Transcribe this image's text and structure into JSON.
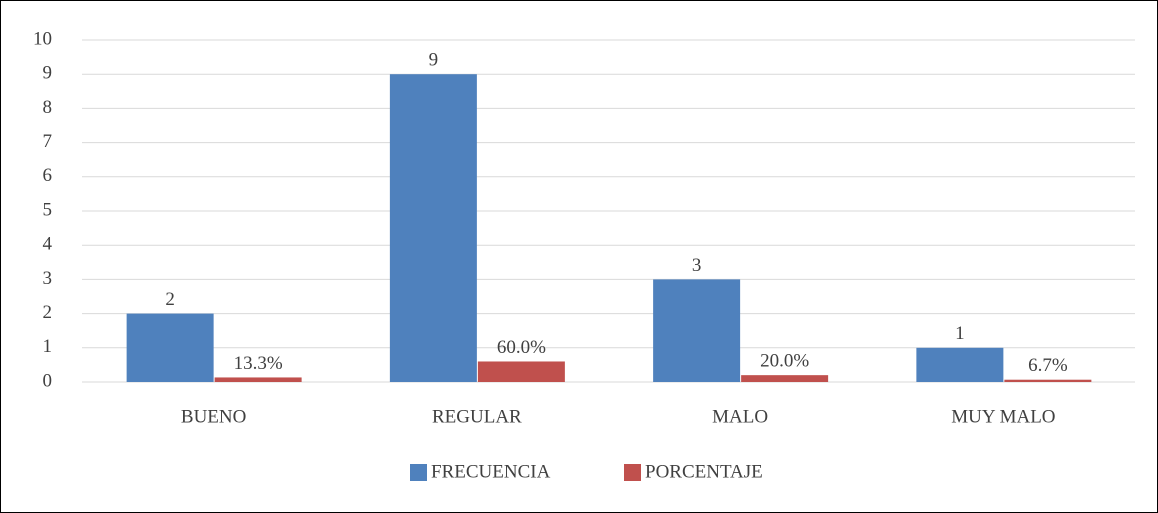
{
  "chart_data": {
    "type": "bar",
    "categories": [
      "BUENO",
      "REGULAR",
      "MALO",
      "MUY MALO"
    ],
    "series": [
      {
        "name": "FRECUENCIA",
        "color": "#4f81bd",
        "values": [
          2,
          9,
          3,
          1
        ]
      },
      {
        "name": "PORCENTAJE",
        "color": "#c0504d",
        "values": [
          0.133,
          0.6,
          0.2,
          0.067
        ],
        "value_labels": [
          "13.3%",
          "60.0%",
          "20.0%",
          "6.7%"
        ]
      }
    ],
    "ylim": [
      0,
      10
    ],
    "yticks": [
      0,
      1,
      2,
      3,
      4,
      5,
      6,
      7,
      8,
      9,
      10
    ],
    "grid": true,
    "legend": "bottom"
  }
}
